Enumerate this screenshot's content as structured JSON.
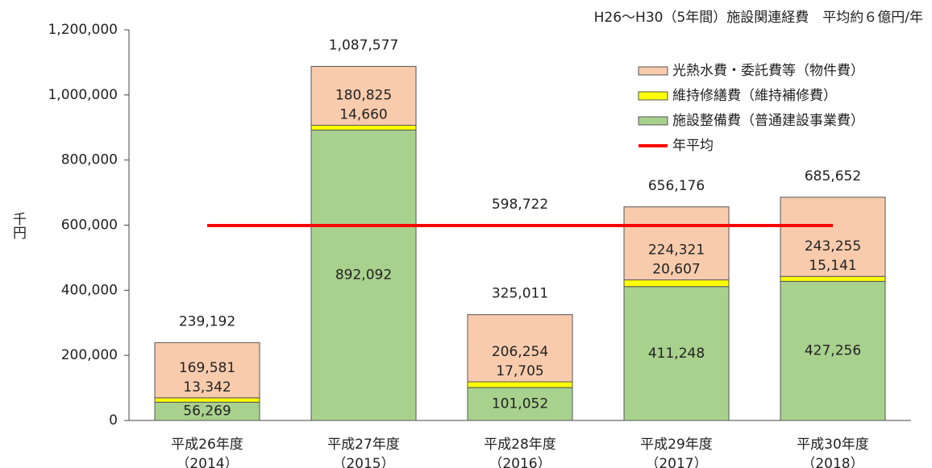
{
  "chart_data": {
    "type": "stacked_bar",
    "annotation": "H26～H30（5年間）施設関連経費　平均約６億円/年",
    "y_label": "千円",
    "categories": [
      [
        "平成26年度",
        "（2014）"
      ],
      [
        "平成27年度",
        "（2015）"
      ],
      [
        "平成28年度",
        "（2016）"
      ],
      [
        "平成29年度",
        "（2017）"
      ],
      [
        "平成30年度",
        "（2018）"
      ]
    ],
    "series": [
      {
        "name": "施設整備費（普通建設事業費）",
        "color": "#a9d18e",
        "values": [
          56269,
          892092,
          101052,
          411248,
          427256
        ],
        "value_labels": [
          "56,269",
          "892,092",
          "101,052",
          "411,248",
          "427,256"
        ]
      },
      {
        "name": "維持修繕費（維持補修費）",
        "color": "#ffff00",
        "values": [
          13342,
          14660,
          17705,
          20607,
          15141
        ],
        "value_labels": [
          "13,342",
          "14,660",
          "17,705",
          "20,607",
          "15,141"
        ]
      },
      {
        "name": "光熱水費・委託費等（物件費）",
        "color": "#f8cbad",
        "values": [
          169581,
          180825,
          206254,
          224321,
          243255
        ],
        "value_labels": [
          "169,581",
          "180,825",
          "206,254",
          "224,321",
          "243,255"
        ]
      }
    ],
    "totals": [
      239192,
      1087577,
      325011,
      656176,
      685652
    ],
    "total_labels": [
      "239,192",
      "1,087,577",
      "325,011",
      "656,176",
      "685,652"
    ],
    "average": {
      "name": "年平均",
      "value": 598722,
      "value_label": "598,722",
      "color": "#ff0000"
    },
    "ylim": [
      0,
      1200000
    ],
    "yticks": [
      0,
      {
        "value": 200000,
        "label": "200,000"
      },
      {
        "value": 400000,
        "label": "400,000"
      },
      {
        "value": 600000,
        "label": "600,000"
      },
      {
        "value": 800000,
        "label": "800,000"
      },
      {
        "value": 1000000,
        "label": "1,000,000"
      },
      {
        "value": 1200000,
        "label": "1,200,000"
      }
    ]
  }
}
